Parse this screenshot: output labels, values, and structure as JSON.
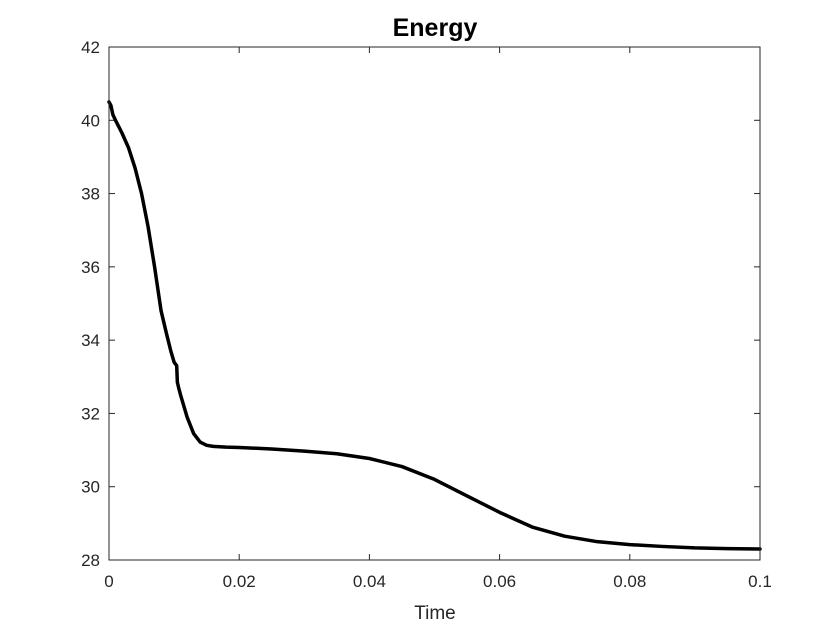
{
  "chart_data": {
    "type": "line",
    "title": "Energy",
    "xlabel": "Time",
    "ylabel": "",
    "xlim": [
      0,
      0.1
    ],
    "ylim": [
      28,
      42
    ],
    "x_ticks": [
      0,
      0.02,
      0.04,
      0.06,
      0.08,
      0.1
    ],
    "x_tick_labels": [
      "0",
      "0.02",
      "0.04",
      "0.06",
      "0.08",
      "0.1"
    ],
    "y_ticks": [
      28,
      30,
      32,
      34,
      36,
      38,
      40,
      42
    ],
    "y_tick_labels": [
      "28",
      "30",
      "32",
      "34",
      "36",
      "38",
      "40",
      "42"
    ],
    "grid": false,
    "line_color": "#000000",
    "series": [
      {
        "x": [
          0,
          0.0003,
          0.0006,
          0.001,
          0.002,
          0.003,
          0.004,
          0.005,
          0.006,
          0.007,
          0.008,
          0.0088,
          0.0095,
          0.01,
          0.0104,
          0.0105,
          0.0107,
          0.011,
          0.012,
          0.013,
          0.014,
          0.015,
          0.016,
          0.018,
          0.02,
          0.025,
          0.03,
          0.035,
          0.04,
          0.045,
          0.05,
          0.055,
          0.06,
          0.065,
          0.07,
          0.075,
          0.08,
          0.085,
          0.09,
          0.095,
          0.1
        ],
        "y": [
          40.5,
          40.4,
          40.15,
          40.0,
          39.65,
          39.25,
          38.7,
          38.0,
          37.1,
          36.0,
          34.8,
          34.2,
          33.7,
          33.4,
          33.3,
          32.85,
          32.7,
          32.5,
          31.9,
          31.45,
          31.22,
          31.13,
          31.1,
          31.08,
          31.07,
          31.03,
          30.97,
          30.9,
          30.77,
          30.55,
          30.2,
          29.75,
          29.3,
          28.9,
          28.65,
          28.5,
          28.42,
          28.37,
          28.33,
          28.31,
          28.3
        ]
      }
    ]
  }
}
